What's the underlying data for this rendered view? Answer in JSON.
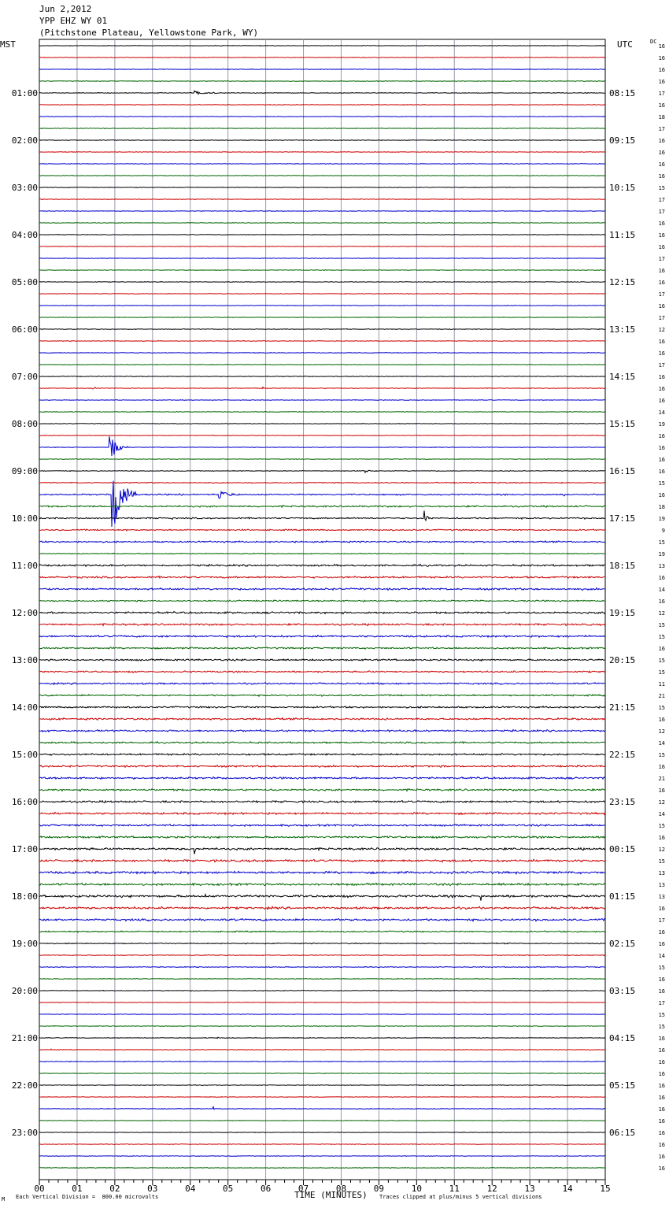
{
  "header": {
    "date": "Jun 2,2012",
    "station": "YPP EHZ WY 01",
    "location": "(Pitchstone Plateau, Yellowstone Park, WY)"
  },
  "axis_labels": {
    "left_tz": "MST",
    "right_tz": "UTC",
    "dc_label": "DC",
    "xlabel": "TIME (MINUTES)"
  },
  "footer": {
    "left_note": "Each Vertical Division =  800.00 microvolts",
    "right_note": "Traces clipped at plus/minus 5 vertical divisions",
    "corner_mark": "M"
  },
  "chart_data": {
    "type": "line",
    "title": "Jun 2,2012  YPP EHZ WY 01  (Pitchstone Plateau, Yellowstone Park, WY)",
    "xlabel": "TIME (MINUTES)",
    "xlim": [
      0,
      15
    ],
    "x_ticks": [
      "00",
      "01",
      "02",
      "03",
      "04",
      "05",
      "06",
      "07",
      "08",
      "09",
      "10",
      "11",
      "12",
      "13",
      "14",
      "15"
    ],
    "rows_per_hour": 4,
    "row_count": 96,
    "trace_colors": [
      "#000000",
      "#cc0000",
      "#0000cc",
      "#006600"
    ],
    "grid": true,
    "mst_hour_labels": [
      "01:00",
      "02:00",
      "03:00",
      "04:00",
      "05:00",
      "06:00",
      "07:00",
      "08:00",
      "09:00",
      "10:00",
      "11:00",
      "12:00",
      "13:00",
      "14:00",
      "15:00",
      "16:00",
      "17:00",
      "18:00",
      "19:00",
      "20:00",
      "21:00",
      "22:00",
      "23:00"
    ],
    "utc_hour_labels": [
      "08:15",
      "09:15",
      "10:15",
      "11:15",
      "12:15",
      "13:15",
      "14:15",
      "15:15",
      "16:15",
      "17:15",
      "18:15",
      "19:15",
      "20:15",
      "21:15",
      "22:15",
      "23:15",
      "00:15",
      "01:15",
      "02:15",
      "03:15",
      "04:15",
      "05:15",
      "06:15"
    ],
    "dc_offsets": [
      16,
      16,
      16,
      16,
      17,
      16,
      18,
      17,
      16,
      16,
      16,
      16,
      15,
      17,
      17,
      16,
      16,
      16,
      17,
      16,
      16,
      17,
      16,
      17,
      12,
      16,
      16,
      17,
      16,
      16,
      16,
      14,
      19,
      16,
      16,
      16,
      16,
      15,
      16,
      18,
      19,
      9,
      15,
      19,
      13,
      16,
      14,
      16,
      12,
      15,
      15,
      16,
      15,
      15,
      11,
      21,
      15,
      16,
      12,
      14,
      15,
      16,
      21,
      16,
      12,
      14,
      15,
      16,
      12,
      15,
      13,
      13,
      13,
      16,
      17,
      16,
      16,
      14,
      15,
      16,
      16,
      17,
      15,
      15,
      16,
      16,
      16,
      16,
      16,
      16,
      16,
      16,
      16,
      16,
      16,
      16
    ],
    "noise_levels": [
      0.5,
      0.5,
      0.5,
      0.5,
      0.6,
      0.5,
      0.5,
      0.5,
      0.5,
      0.5,
      0.5,
      0.5,
      0.5,
      0.5,
      0.5,
      0.5,
      0.5,
      0.5,
      0.5,
      0.5,
      0.5,
      0.5,
      0.5,
      0.5,
      0.6,
      0.5,
      0.5,
      0.5,
      0.6,
      0.5,
      0.5,
      0.5,
      0.5,
      0.5,
      0.5,
      0.5,
      0.6,
      0.8,
      1.2,
      1.4,
      1.2,
      1.2,
      1.3,
      0.8,
      1.5,
      1.6,
      1.6,
      1.2,
      1.6,
      1.6,
      1.6,
      1.4,
      1.5,
      1.4,
      1.4,
      1.3,
      1.5,
      1.6,
      1.6,
      1.4,
      1.5,
      1.5,
      1.6,
      1.6,
      1.7,
      1.7,
      1.6,
      1.7,
      1.8,
      1.9,
      2.0,
      1.9,
      2.0,
      1.9,
      1.8,
      1.2,
      0.9,
      0.7,
      0.7,
      0.6,
      0.6,
      0.5,
      0.5,
      0.5,
      0.5,
      0.5,
      0.6,
      0.5,
      0.5,
      0.5,
      0.5,
      0.5,
      0.5,
      0.5,
      0.5,
      0.5
    ],
    "events": [
      {
        "row": 4,
        "minute": 4.1,
        "duration": 1.0,
        "amp": 3
      },
      {
        "row": 29,
        "minute": 1.4,
        "duration": 0.3,
        "amp": 2
      },
      {
        "row": 29,
        "minute": 5.9,
        "duration": 0.2,
        "amp": 2
      },
      {
        "row": 34,
        "minute": 1.85,
        "duration": 0.5,
        "amp": 22
      },
      {
        "row": 36,
        "minute": 8.6,
        "duration": 0.4,
        "amp": 3
      },
      {
        "row": 38,
        "minute": 1.9,
        "duration": 0.7,
        "amp": 60
      },
      {
        "row": 38,
        "minute": 4.75,
        "duration": 0.6,
        "amp": 8
      },
      {
        "row": 38,
        "minute": 3.7,
        "duration": 0.1,
        "amp": 5
      },
      {
        "row": 38,
        "minute": 13.9,
        "duration": 0.1,
        "amp": 5
      },
      {
        "row": 40,
        "minute": 3.5,
        "duration": 0.1,
        "amp": 2
      },
      {
        "row": 40,
        "minute": 10.2,
        "duration": 0.15,
        "amp": 16
      },
      {
        "row": 68,
        "minute": 4.1,
        "duration": 0.05,
        "amp": 25
      },
      {
        "row": 72,
        "minute": 4.4,
        "duration": 0.05,
        "amp": 8
      },
      {
        "row": 72,
        "minute": 11.7,
        "duration": 0.05,
        "amp": 9
      },
      {
        "row": 84,
        "minute": 4.7,
        "duration": 0.05,
        "amp": 6
      },
      {
        "row": 85,
        "minute": 0.3,
        "duration": 0.05,
        "amp": 4
      },
      {
        "row": 90,
        "minute": 4.6,
        "duration": 0.05,
        "amp": 9
      }
    ]
  }
}
